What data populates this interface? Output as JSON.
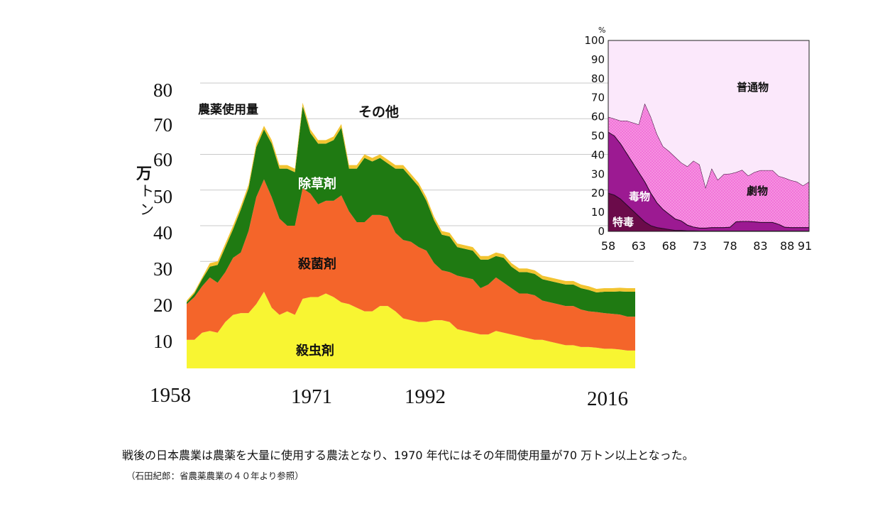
{
  "caption": "戦後の日本農業は農薬を大量に使用する農法となり、1970 年代にはその年間使用量が70 万トン以上となった。",
  "source": "（石田紀郎：省農薬農業の４０年より参照）",
  "colors": {
    "insecticide": "#f8f532",
    "fungicide": "#f4652a",
    "herbicide": "#1f7a12",
    "other": "#f2c431",
    "tokudoku": "#6b0b4a",
    "dokubutsu": "#9c1a92",
    "gekibutsu": "#f273d8",
    "futsubutsu": "#fbe8fb"
  },
  "chart_data": [
    {
      "type": "area",
      "stacked": true,
      "title": "農薬使用量",
      "ylabel": "万トン",
      "ylim": [
        0,
        80
      ],
      "yticks": [
        "80",
        "70",
        "60",
        "50",
        "40",
        "30",
        "20",
        "10"
      ],
      "xlim": [
        1958,
        2016
      ],
      "xticks": [
        "1958",
        "1971",
        "1992",
        "2016"
      ],
      "grid": true,
      "x": [
        1958,
        1959,
        1960,
        1961,
        1962,
        1963,
        1964,
        1965,
        1966,
        1967,
        1968,
        1969,
        1970,
        1971,
        1972,
        1973,
        1974,
        1975,
        1976,
        1977,
        1978,
        1979,
        1980,
        1981,
        1982,
        1983,
        1984,
        1985,
        1986,
        1987,
        1988,
        1989,
        1990,
        1991,
        1992,
        1993,
        1994,
        1995,
        1996,
        1997,
        1998,
        1999,
        2000,
        2001,
        2002,
        2003,
        2004,
        2005,
        2006,
        2007,
        2008,
        2009,
        2010,
        2011,
        2012,
        2013,
        2014,
        2015,
        2016
      ],
      "series": [
        {
          "name": "殺虫剤",
          "values": [
            8,
            8,
            10,
            10.5,
            10,
            13,
            15,
            15.5,
            15.5,
            18,
            21.5,
            17,
            15,
            16,
            15,
            19.5,
            20,
            20,
            21,
            20,
            18.5,
            18,
            17,
            16,
            16,
            17.5,
            17.5,
            16,
            14,
            13.5,
            13,
            13,
            13.5,
            13.5,
            13,
            11,
            10.5,
            10,
            9.5,
            9.5,
            10.5,
            10,
            9.5,
            9,
            8.5,
            8,
            8,
            7.5,
            7,
            6.5,
            6.5,
            6,
            6,
            5.8,
            5.5,
            5.5,
            5.3,
            5,
            5
          ]
        },
        {
          "name": "殺菌剤",
          "values": [
            10,
            12,
            13,
            15,
            14,
            14,
            16,
            17,
            23,
            30,
            31.5,
            31,
            27,
            24,
            25,
            31,
            29,
            26,
            26,
            27,
            30,
            26,
            24,
            25,
            27,
            25.5,
            25,
            22,
            22,
            22,
            21,
            20,
            16,
            14,
            14,
            15,
            15,
            15,
            13,
            14,
            15,
            14,
            13,
            12,
            12.5,
            12.5,
            11,
            11,
            11,
            11,
            11,
            10.5,
            10,
            10,
            10,
            9.8,
            9.8,
            9.5,
            9.5
          ]
        },
        {
          "name": "除草剤",
          "values": [
            0.5,
            1,
            2,
            3,
            5,
            7,
            8,
            12,
            12,
            14,
            14,
            15,
            14,
            16,
            15,
            23,
            17,
            17,
            16,
            17,
            19,
            12,
            15,
            18,
            15,
            16,
            15,
            18,
            20,
            18,
            17,
            14,
            12,
            10,
            10,
            8,
            8,
            8,
            8,
            7,
            6,
            7,
            6,
            6,
            6,
            6,
            6,
            6,
            6,
            6,
            6,
            6,
            6,
            5.5,
            6,
            6.2,
            6.5,
            7,
            7
          ]
        },
        {
          "name": "その他",
          "values": [
            0.5,
            0.5,
            0.5,
            1,
            1,
            1,
            1,
            1,
            1,
            1,
            1,
            1,
            1,
            1,
            1,
            1,
            1,
            1,
            1,
            1,
            1,
            1,
            1,
            1,
            1,
            1,
            1,
            1,
            1,
            1,
            1,
            1,
            1,
            1,
            1,
            1,
            1,
            1,
            1,
            1,
            1,
            1,
            1,
            1,
            1,
            1,
            1,
            1,
            1,
            1,
            1,
            1,
            1,
            1,
            1,
            1,
            1,
            1,
            1
          ]
        }
      ],
      "annotations": [
        {
          "text": "農薬使用量"
        },
        {
          "text": "その他"
        },
        {
          "text": "除草剤"
        },
        {
          "text": "殺菌剤"
        },
        {
          "text": "殺虫剤"
        }
      ]
    },
    {
      "type": "area",
      "stacked": true,
      "unit": "%",
      "ylim": [
        0,
        100
      ],
      "yticks": [
        "100",
        "90",
        "80",
        "70",
        "60",
        "50",
        "40",
        "30",
        "20",
        "10",
        "0"
      ],
      "xlim": [
        1958,
        1991
      ],
      "xticks": [
        "58",
        "63",
        "68",
        "73",
        "78",
        "83",
        "88",
        "91"
      ],
      "x": [
        1958,
        1959,
        1960,
        1961,
        1962,
        1963,
        1964,
        1965,
        1966,
        1967,
        1968,
        1969,
        1970,
        1971,
        1972,
        1973,
        1974,
        1975,
        1976,
        1977,
        1978,
        1979,
        1980,
        1981,
        1982,
        1983,
        1984,
        1985,
        1986,
        1987,
        1988,
        1989,
        1990,
        1991
      ],
      "series": [
        {
          "name": "特毒",
          "values": [
            20,
            19,
            17,
            14,
            11,
            8,
            5,
            3,
            2,
            1.5,
            1,
            0.5,
            0.5,
            0.3,
            0.3,
            0.2,
            0.2,
            0.2,
            0.2,
            0.2,
            0.2,
            0.2,
            0.2,
            0.2,
            0.2,
            0.2,
            0.2,
            0.2,
            0.2,
            0.2,
            0.2,
            0.2,
            0.2,
            0.2
          ]
        },
        {
          "name": "毒物",
          "values": [
            32,
            31,
            29,
            27,
            25,
            23,
            21,
            17,
            13,
            10,
            8,
            6,
            5,
            3,
            2,
            1.5,
            1.5,
            1.8,
            1.8,
            1.8,
            2,
            4.8,
            5,
            5,
            4.8,
            4.5,
            4.5,
            4.5,
            3.5,
            2,
            1.8,
            1.8,
            1.8,
            1.8
          ]
        },
        {
          "name": "劇物",
          "values": [
            8,
            9,
            12,
            17,
            21,
            25,
            41,
            40,
            36,
            33,
            33,
            32.5,
            30.5,
            30.7,
            34.7,
            33.3,
            21.3,
            31,
            25,
            28,
            28,
            26,
            27,
            24,
            26,
            27.3,
            27.3,
            27.3,
            25.3,
            25.8,
            24.8,
            24,
            22,
            24
          ]
        },
        {
          "name": "普通物",
          "values": [
            40,
            41,
            42,
            42,
            43,
            44,
            33,
            40,
            49,
            55.5,
            58,
            61,
            64,
            66,
            63,
            65,
            77,
            67,
            73,
            70,
            69.8,
            69,
            67.8,
            70.8,
            69,
            68,
            68,
            68,
            71,
            72,
            73.2,
            74,
            76,
            74
          ]
        }
      ],
      "annotations": [
        {
          "text": "普通物"
        },
        {
          "text": "劇物"
        },
        {
          "text": "毒物"
        },
        {
          "text": "特毒"
        }
      ]
    }
  ]
}
